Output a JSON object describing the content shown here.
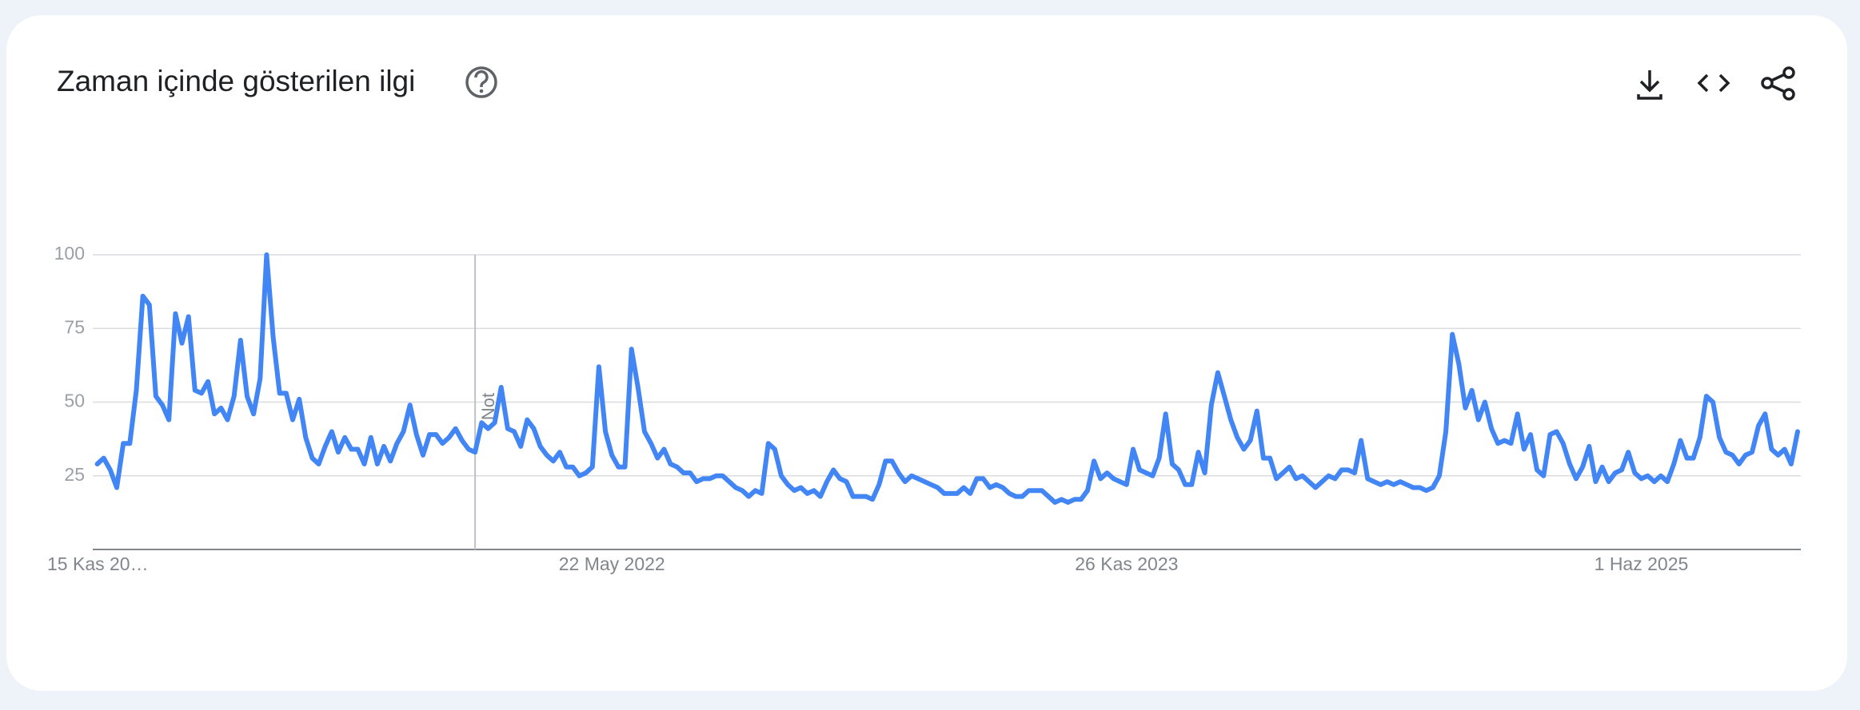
{
  "chart_data": {
    "type": "line",
    "title": "Zaman içinde gösterilen ilgi",
    "categories": [
      "15 Kas 20…",
      null,
      null,
      null,
      null,
      null,
      null,
      null,
      null,
      null,
      null,
      null,
      null,
      null,
      null,
      null,
      null,
      null,
      null,
      null,
      null,
      null,
      null,
      null,
      null,
      null,
      null,
      null,
      null,
      null,
      null,
      null,
      null,
      null,
      null,
      null,
      null,
      null,
      null,
      null,
      null,
      null,
      null,
      null,
      null,
      null,
      null,
      null,
      null,
      null,
      null,
      null,
      null,
      null,
      null,
      null,
      null,
      null,
      null,
      null,
      null,
      null,
      null,
      null,
      null,
      null,
      null,
      null,
      null,
      null,
      null,
      null,
      null,
      null,
      null,
      null,
      null,
      null,
      null,
      "22 May 2022",
      null,
      null,
      null,
      null,
      null,
      null,
      null,
      null,
      null,
      null,
      null,
      null,
      null,
      null,
      null,
      null,
      null,
      null,
      null,
      null,
      null,
      null,
      null,
      null,
      null,
      null,
      null,
      null,
      null,
      null,
      null,
      null,
      null,
      null,
      null,
      null,
      null,
      null,
      null,
      null,
      null,
      null,
      null,
      null,
      null,
      null,
      null,
      null,
      null,
      null,
      null,
      null,
      null,
      null,
      null,
      null,
      null,
      null,
      null,
      null,
      null,
      null,
      null,
      null,
      null,
      null,
      null,
      null,
      null,
      null,
      null,
      null,
      null,
      null,
      null,
      null,
      null,
      null,
      "26 Kas 2023",
      null,
      null,
      null,
      null,
      null,
      null,
      null,
      null,
      null,
      null,
      null,
      null,
      null,
      null,
      null,
      null,
      null,
      null,
      null,
      null,
      null,
      null,
      null,
      null,
      null,
      null,
      null,
      null,
      null,
      null,
      null,
      null,
      null,
      null,
      null,
      null,
      null,
      null,
      null,
      null,
      null,
      null,
      null,
      null,
      null,
      null,
      null,
      null,
      null,
      null,
      null,
      null,
      null,
      null,
      null,
      null,
      null,
      null,
      null,
      null,
      null,
      null,
      null,
      null,
      null,
      null,
      null,
      null,
      null,
      null,
      null,
      null,
      null,
      null,
      null,
      null,
      null,
      null,
      "1 Haz 2025",
      null,
      null,
      null,
      null,
      null,
      null,
      null,
      null,
      null,
      null,
      null,
      null,
      null,
      null,
      null,
      null,
      null,
      null,
      null,
      null,
      null,
      null,
      null,
      null
    ],
    "values": [
      29,
      31,
      27,
      21,
      36,
      36,
      54,
      86,
      83,
      52,
      49,
      44,
      80,
      70,
      79,
      54,
      53,
      57,
      46,
      48,
      44,
      52,
      71,
      52,
      46,
      58,
      100,
      72,
      53,
      53,
      44,
      51,
      38,
      31,
      29,
      35,
      40,
      33,
      38,
      34,
      34,
      29,
      38,
      29,
      35,
      30,
      36,
      40,
      49,
      39,
      32,
      39,
      39,
      36,
      38,
      41,
      37,
      34,
      33,
      43,
      41,
      43,
      55,
      41,
      40,
      35,
      44,
      41,
      35,
      32,
      30,
      33,
      28,
      28,
      25,
      26,
      28,
      62,
      40,
      32,
      28,
      28,
      68,
      55,
      40,
      36,
      31,
      34,
      29,
      28,
      26,
      26,
      23,
      24,
      24,
      25,
      25,
      23,
      21,
      20,
      18,
      20,
      19,
      36,
      34,
      25,
      22,
      20,
      21,
      19,
      20,
      18,
      23,
      27,
      24,
      23,
      18,
      18,
      18,
      17,
      22,
      30,
      30,
      26,
      23,
      25,
      24,
      23,
      22,
      21,
      19,
      19,
      19,
      21,
      19,
      24,
      24,
      21,
      22,
      21,
      19,
      18,
      18,
      20,
      20,
      20,
      18,
      16,
      17,
      16,
      17,
      17,
      20,
      30,
      24,
      26,
      24,
      23,
      22,
      34,
      27,
      26,
      25,
      31,
      46,
      29,
      27,
      22,
      22,
      33,
      26,
      49,
      60,
      52,
      44,
      38,
      34,
      37,
      47,
      31,
      31,
      24,
      26,
      28,
      24,
      25,
      23,
      21,
      23,
      25,
      24,
      27,
      27,
      26,
      37,
      24,
      23,
      22,
      23,
      22,
      23,
      22,
      21,
      21,
      20,
      21,
      25,
      40,
      73,
      63,
      48,
      54,
      44,
      50,
      41,
      36,
      37,
      36,
      46,
      34,
      39,
      27,
      25,
      39,
      40,
      36,
      29,
      24,
      28,
      35,
      23,
      28,
      23,
      26,
      27,
      33,
      26,
      24,
      25,
      23,
      25,
      23,
      29,
      37,
      31,
      31,
      38,
      52,
      50,
      38,
      33,
      32,
      29,
      32,
      33,
      42,
      46,
      34,
      32,
      34,
      29,
      40
    ],
    "color": "#4285f4",
    "ylim": [
      0,
      100
    ],
    "yticks": [
      25,
      50,
      75,
      100
    ],
    "grid": true,
    "annotation": {
      "text": "Not",
      "category_index": 58
    }
  }
}
